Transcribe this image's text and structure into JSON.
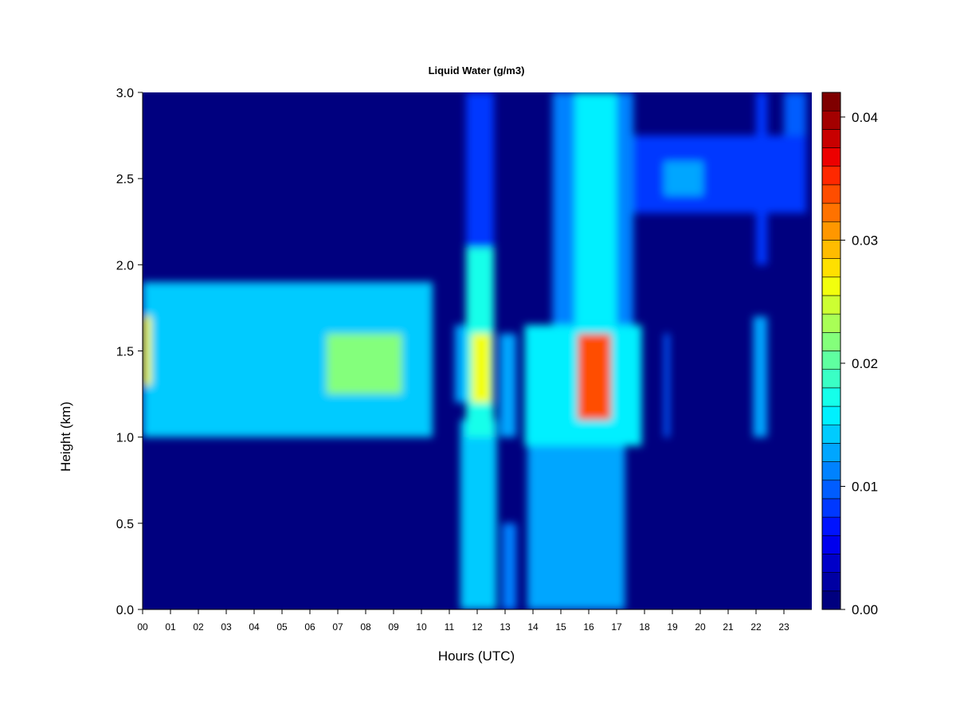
{
  "chart_data": {
    "type": "heatmap",
    "title": "Liquid Water (g/m3)",
    "xlabel": "Hours (UTC)",
    "ylabel": "Height (km)",
    "xlim": [
      0,
      24
    ],
    "ylim": [
      0,
      3
    ],
    "x_ticks": [
      "00",
      "01",
      "02",
      "03",
      "04",
      "05",
      "06",
      "07",
      "08",
      "09",
      "10",
      "11",
      "12",
      "13",
      "14",
      "15",
      "16",
      "17",
      "18",
      "19",
      "20",
      "21",
      "22",
      "23"
    ],
    "y_ticks": [
      "0.0",
      "0.5",
      "1.0",
      "1.5",
      "2.0",
      "2.5",
      "3.0"
    ],
    "colorbar": {
      "range": [
        0,
        0.042
      ],
      "ticks": [
        "0.00",
        "0.01",
        "0.02",
        "0.03",
        "0.04"
      ],
      "colors": [
        "#00007f",
        "#0000a3",
        "#0000c8",
        "#0000ed",
        "#0013ff",
        "#0038ff",
        "#005dff",
        "#0082ff",
        "#00a6ff",
        "#00cbff",
        "#00f0ff",
        "#15ffea",
        "#3affc5",
        "#5fffa0",
        "#84ff7b",
        "#a9ff56",
        "#cdff32",
        "#f2ff0d",
        "#ffe000",
        "#ffbc00",
        "#ff9700",
        "#ff7200",
        "#ff4d00",
        "#ff2800",
        "#ed0000",
        "#c80000",
        "#a30000",
        "#7f0000"
      ]
    },
    "cloud_regions": [
      {
        "x": [
          0.0,
          10.4
        ],
        "y": [
          1.0,
          1.9
        ],
        "value": 0.014
      },
      {
        "x": [
          0.0,
          0.3
        ],
        "y": [
          1.3,
          1.7
        ],
        "value": 0.026
      },
      {
        "x": [
          6.6,
          9.3
        ],
        "y": [
          1.25,
          1.6
        ],
        "value": 0.021
      },
      {
        "x": [
          11.2,
          11.9
        ],
        "y": [
          1.2,
          1.65
        ],
        "value": 0.012
      },
      {
        "x": [
          11.4,
          12.7
        ],
        "y": [
          0.0,
          1.1
        ],
        "value": 0.015
      },
      {
        "x": [
          11.6,
          12.6
        ],
        "y": [
          1.0,
          2.1
        ],
        "value": 0.018
      },
      {
        "x": [
          11.8,
          12.5
        ],
        "y": [
          1.2,
          1.6
        ],
        "value": 0.026
      },
      {
        "x": [
          11.6,
          12.6
        ],
        "y": [
          2.1,
          3.0
        ],
        "value": 0.009
      },
      {
        "x": [
          12.8,
          13.4
        ],
        "y": [
          1.0,
          1.6
        ],
        "value": 0.013
      },
      {
        "x": [
          12.9,
          13.4
        ],
        "y": [
          0.0,
          0.5
        ],
        "value": 0.011
      },
      {
        "x": [
          13.7,
          17.9
        ],
        "y": [
          0.95,
          1.65
        ],
        "value": 0.016
      },
      {
        "x": [
          13.8,
          17.3
        ],
        "y": [
          0.0,
          0.95
        ],
        "value": 0.012
      },
      {
        "x": [
          15.6,
          16.8
        ],
        "y": [
          1.1,
          1.6
        ],
        "value": 0.033
      },
      {
        "x": [
          14.7,
          17.6
        ],
        "y": [
          1.65,
          3.0
        ],
        "value": 0.011
      },
      {
        "x": [
          15.5,
          17.0
        ],
        "y": [
          1.65,
          3.0
        ],
        "value": 0.016
      },
      {
        "x": [
          17.6,
          23.8
        ],
        "y": [
          2.3,
          2.75
        ],
        "value": 0.009
      },
      {
        "x": [
          18.7,
          20.1
        ],
        "y": [
          2.4,
          2.6
        ],
        "value": 0.012
      },
      {
        "x": [
          18.7,
          18.9
        ],
        "y": [
          1.0,
          1.6
        ],
        "value": 0.01
      },
      {
        "x": [
          21.9,
          22.4
        ],
        "y": [
          1.0,
          1.7
        ],
        "value": 0.012
      },
      {
        "x": [
          22.0,
          22.4
        ],
        "y": [
          2.0,
          3.0
        ],
        "value": 0.009
      },
      {
        "x": [
          23.0,
          23.8
        ],
        "y": [
          2.75,
          3.0
        ],
        "value": 0.01
      }
    ]
  }
}
